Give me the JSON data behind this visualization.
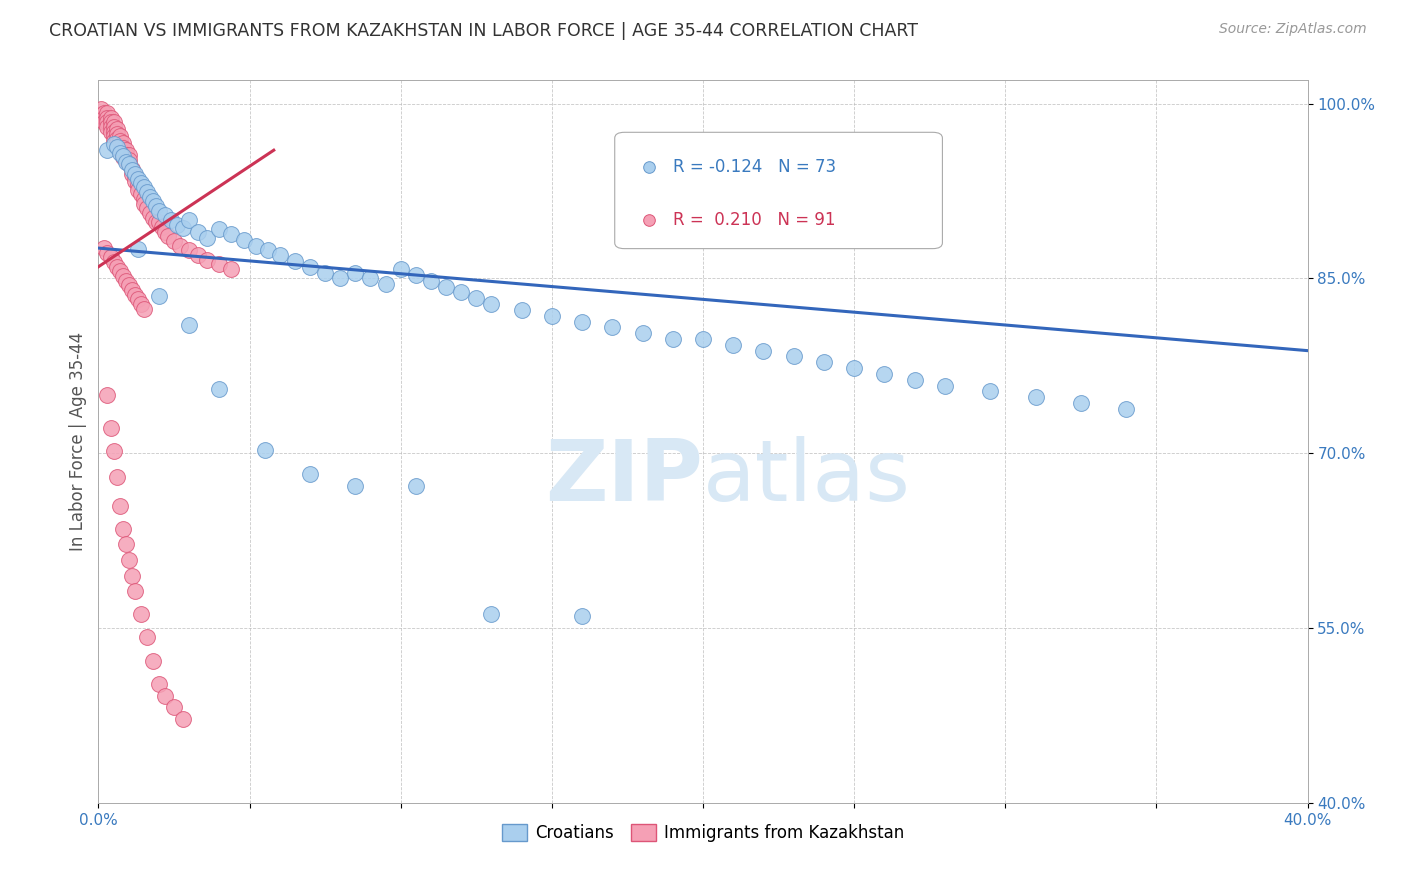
{
  "title": "CROATIAN VS IMMIGRANTS FROM KAZAKHSTAN IN LABOR FORCE | AGE 35-44 CORRELATION CHART",
  "source": "Source: ZipAtlas.com",
  "ylabel": "In Labor Force | Age 35-44",
  "xlim": [
    0.0,
    0.4
  ],
  "ylim": [
    0.4,
    1.02
  ],
  "xticks": [
    0.0,
    0.05,
    0.1,
    0.15,
    0.2,
    0.25,
    0.3,
    0.35,
    0.4
  ],
  "yticks": [
    0.4,
    0.55,
    0.7,
    0.85,
    1.0
  ],
  "ytick_labels": [
    "40.0%",
    "55.0%",
    "70.0%",
    "85.0%",
    "100.0%"
  ],
  "legend_r_blue": "-0.124",
  "legend_n_blue": "73",
  "legend_r_pink": "0.210",
  "legend_n_pink": "91",
  "blue_fill": "#aacfee",
  "pink_fill": "#f5a0b5",
  "blue_edge": "#6699cc",
  "pink_edge": "#dd5577",
  "trend_blue_color": "#3366bb",
  "trend_pink_color": "#cc3355",
  "watermark_color": "#d8e8f5",
  "blue_trend_x": [
    0.0,
    0.4
  ],
  "blue_trend_y": [
    0.876,
    0.788
  ],
  "pink_trend_x": [
    0.0,
    0.058
  ],
  "pink_trend_y": [
    0.86,
    0.96
  ],
  "blue_scatter_x": [
    0.003,
    0.005,
    0.006,
    0.007,
    0.008,
    0.009,
    0.01,
    0.011,
    0.012,
    0.013,
    0.014,
    0.015,
    0.016,
    0.017,
    0.018,
    0.019,
    0.02,
    0.022,
    0.024,
    0.026,
    0.028,
    0.03,
    0.033,
    0.036,
    0.04,
    0.044,
    0.048,
    0.052,
    0.056,
    0.06,
    0.065,
    0.07,
    0.075,
    0.08,
    0.085,
    0.09,
    0.095,
    0.1,
    0.105,
    0.11,
    0.115,
    0.12,
    0.125,
    0.13,
    0.14,
    0.15,
    0.16,
    0.17,
    0.18,
    0.19,
    0.2,
    0.21,
    0.22,
    0.23,
    0.24,
    0.25,
    0.26,
    0.27,
    0.28,
    0.295,
    0.31,
    0.325,
    0.34,
    0.013,
    0.02,
    0.03,
    0.04,
    0.055,
    0.07,
    0.085,
    0.105,
    0.13,
    0.16
  ],
  "blue_scatter_y": [
    0.96,
    0.965,
    0.963,
    0.958,
    0.955,
    0.95,
    0.948,
    0.943,
    0.94,
    0.935,
    0.932,
    0.928,
    0.924,
    0.92,
    0.916,
    0.912,
    0.908,
    0.904,
    0.9,
    0.896,
    0.893,
    0.9,
    0.89,
    0.885,
    0.892,
    0.888,
    0.883,
    0.878,
    0.874,
    0.87,
    0.865,
    0.86,
    0.855,
    0.85,
    0.855,
    0.85,
    0.845,
    0.858,
    0.853,
    0.848,
    0.843,
    0.838,
    0.833,
    0.828,
    0.823,
    0.818,
    0.813,
    0.808,
    0.803,
    0.798,
    0.798,
    0.793,
    0.788,
    0.783,
    0.778,
    0.773,
    0.768,
    0.763,
    0.758,
    0.753,
    0.748,
    0.743,
    0.738,
    0.875,
    0.835,
    0.81,
    0.755,
    0.703,
    0.682,
    0.672,
    0.672,
    0.562,
    0.56
  ],
  "pink_scatter_x": [
    0.001,
    0.001,
    0.002,
    0.002,
    0.002,
    0.003,
    0.003,
    0.003,
    0.003,
    0.004,
    0.004,
    0.004,
    0.004,
    0.005,
    0.005,
    0.005,
    0.005,
    0.005,
    0.006,
    0.006,
    0.006,
    0.006,
    0.007,
    0.007,
    0.007,
    0.007,
    0.008,
    0.008,
    0.008,
    0.008,
    0.009,
    0.009,
    0.009,
    0.01,
    0.01,
    0.01,
    0.011,
    0.011,
    0.012,
    0.012,
    0.013,
    0.013,
    0.014,
    0.015,
    0.015,
    0.016,
    0.017,
    0.018,
    0.019,
    0.02,
    0.021,
    0.022,
    0.023,
    0.025,
    0.027,
    0.03,
    0.033,
    0.036,
    0.04,
    0.044,
    0.002,
    0.003,
    0.004,
    0.005,
    0.006,
    0.007,
    0.008,
    0.009,
    0.01,
    0.011,
    0.012,
    0.013,
    0.014,
    0.015,
    0.003,
    0.004,
    0.005,
    0.006,
    0.007,
    0.008,
    0.009,
    0.01,
    0.011,
    0.012,
    0.014,
    0.016,
    0.018,
    0.02,
    0.022,
    0.025,
    0.028
  ],
  "pink_scatter_y": [
    0.995,
    0.99,
    0.992,
    0.988,
    0.984,
    0.992,
    0.988,
    0.984,
    0.98,
    0.988,
    0.984,
    0.98,
    0.976,
    0.984,
    0.98,
    0.976,
    0.972,
    0.968,
    0.978,
    0.974,
    0.97,
    0.966,
    0.972,
    0.968,
    0.964,
    0.96,
    0.966,
    0.962,
    0.958,
    0.954,
    0.96,
    0.956,
    0.952,
    0.956,
    0.952,
    0.948,
    0.944,
    0.94,
    0.938,
    0.934,
    0.93,
    0.926,
    0.922,
    0.918,
    0.914,
    0.91,
    0.906,
    0.902,
    0.898,
    0.898,
    0.894,
    0.89,
    0.886,
    0.882,
    0.878,
    0.874,
    0.87,
    0.866,
    0.862,
    0.858,
    0.876,
    0.872,
    0.868,
    0.864,
    0.86,
    0.856,
    0.852,
    0.848,
    0.844,
    0.84,
    0.836,
    0.832,
    0.828,
    0.824,
    0.75,
    0.722,
    0.702,
    0.68,
    0.655,
    0.635,
    0.622,
    0.608,
    0.595,
    0.582,
    0.562,
    0.542,
    0.522,
    0.502,
    0.492,
    0.482,
    0.472
  ]
}
